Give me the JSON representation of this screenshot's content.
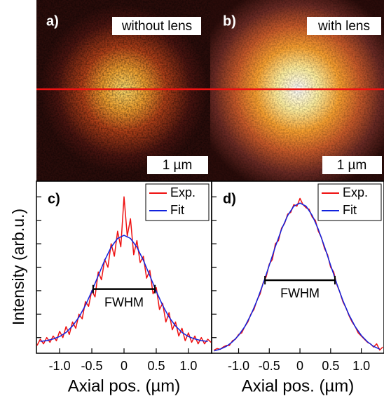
{
  "panels": [
    {
      "letter": "a)",
      "caption": "without lens",
      "scale": "1 µm"
    },
    {
      "letter": "b)",
      "caption": "with lens",
      "scale": "1 µm"
    }
  ],
  "ylabel": "Intensity (arb.u.)",
  "chart_data": [
    {
      "type": "line",
      "letter": "c)",
      "xlabel": "Axial pos. (µm)",
      "xlim": [
        -1.36,
        1.36
      ],
      "ylim": [
        0,
        1.1
      ],
      "xticks": [
        {
          "value": -1,
          "label": "-1.0"
        },
        -0.5,
        0,
        0.5,
        {
          "value": 1,
          "label": "1.0"
        }
      ],
      "yticks": [
        0.1,
        0.25,
        0.4,
        0.55,
        0.7,
        0.85,
        1.0
      ],
      "fwhm": {
        "label": "FWHM",
        "x": [
          -0.48,
          0.48
        ],
        "y": 0.41
      },
      "series": [
        {
          "name": "Exp.",
          "color": "#ee1111",
          "x": [
            -1.35,
            -1.3,
            -1.25,
            -1.2,
            -1.15,
            -1.1,
            -1.05,
            -1.0,
            -0.95,
            -0.9,
            -0.85,
            -0.8,
            -0.75,
            -0.7,
            -0.65,
            -0.6,
            -0.55,
            -0.5,
            -0.45,
            -0.4,
            -0.35,
            -0.3,
            -0.25,
            -0.2,
            -0.15,
            -0.1,
            -0.05,
            0,
            0.05,
            0.1,
            0.15,
            0.2,
            0.25,
            0.3,
            0.35,
            0.4,
            0.45,
            0.5,
            0.55,
            0.6,
            0.65,
            0.7,
            0.75,
            0.8,
            0.85,
            0.9,
            0.95,
            1.0,
            1.05,
            1.1,
            1.15,
            1.2,
            1.25,
            1.3,
            1.35
          ],
          "values": [
            0.05,
            0.09,
            0.06,
            0.1,
            0.07,
            0.11,
            0.08,
            0.14,
            0.1,
            0.17,
            0.12,
            0.2,
            0.16,
            0.25,
            0.22,
            0.33,
            0.3,
            0.4,
            0.36,
            0.52,
            0.47,
            0.6,
            0.55,
            0.7,
            0.62,
            0.78,
            0.68,
            1.0,
            0.75,
            0.86,
            0.63,
            0.72,
            0.58,
            0.62,
            0.48,
            0.53,
            0.38,
            0.42,
            0.28,
            0.32,
            0.2,
            0.26,
            0.15,
            0.2,
            0.11,
            0.16,
            0.08,
            0.13,
            0.07,
            0.11,
            0.06,
            0.1,
            0.06,
            0.09,
            0.07
          ]
        },
        {
          "name": "Fit",
          "color": "#1122dd",
          "x": [
            -1.3,
            -1.2,
            -1.1,
            -1.0,
            -0.9,
            -0.8,
            -0.7,
            -0.6,
            -0.5,
            -0.4,
            -0.3,
            -0.2,
            -0.1,
            0,
            0.1,
            0.2,
            0.3,
            0.4,
            0.5,
            0.6,
            0.7,
            0.8,
            0.9,
            1.0,
            1.1,
            1.2,
            1.3
          ],
          "values": [
            0.076,
            0.081,
            0.091,
            0.107,
            0.133,
            0.174,
            0.231,
            0.306,
            0.396,
            0.496,
            0.594,
            0.678,
            0.734,
            0.754,
            0.734,
            0.678,
            0.594,
            0.496,
            0.396,
            0.306,
            0.231,
            0.174,
            0.133,
            0.107,
            0.091,
            0.081,
            0.076
          ]
        }
      ]
    },
    {
      "type": "line",
      "letter": "d)",
      "xlabel": "Axial pos. (µm)",
      "xlim": [
        -1.44,
        1.37
      ],
      "ylim": [
        0,
        1.1
      ],
      "xticks": [
        {
          "value": -1,
          "label": "-1.0"
        },
        -0.5,
        0,
        0.5,
        {
          "value": 1,
          "label": "1.0"
        }
      ],
      "yticks": [
        0.1,
        0.25,
        0.4,
        0.55,
        0.7,
        0.85,
        1.0
      ],
      "fwhm": {
        "label": "FWHM",
        "x": [
          -0.57,
          0.57
        ],
        "y": 0.467
      },
      "series": [
        {
          "name": "Exp.",
          "color": "#ee1111",
          "x": [
            -1.4,
            -1.35,
            -1.3,
            -1.25,
            -1.2,
            -1.15,
            -1.1,
            -1.05,
            -1.0,
            -0.95,
            -0.9,
            -0.85,
            -0.8,
            -0.75,
            -0.7,
            -0.65,
            -0.6,
            -0.55,
            -0.5,
            -0.45,
            -0.4,
            -0.35,
            -0.3,
            -0.25,
            -0.2,
            -0.15,
            -0.1,
            -0.05,
            0,
            0.05,
            0.1,
            0.15,
            0.2,
            0.25,
            0.3,
            0.35,
            0.4,
            0.45,
            0.5,
            0.55,
            0.6,
            0.65,
            0.7,
            0.75,
            0.8,
            0.85,
            0.9,
            0.95,
            1.0,
            1.05,
            1.1,
            1.15,
            1.2,
            1.25,
            1.3,
            1.35
          ],
          "values": [
            0.02,
            0.03,
            0.025,
            0.04,
            0.05,
            0.05,
            0.08,
            0.09,
            0.12,
            0.13,
            0.17,
            0.2,
            0.25,
            0.28,
            0.34,
            0.38,
            0.45,
            0.49,
            0.57,
            0.6,
            0.7,
            0.72,
            0.8,
            0.83,
            0.89,
            0.9,
            0.95,
            0.94,
            0.99,
            0.95,
            0.93,
            0.92,
            0.87,
            0.85,
            0.78,
            0.74,
            0.67,
            0.63,
            0.55,
            0.52,
            0.44,
            0.39,
            0.33,
            0.29,
            0.24,
            0.2,
            0.17,
            0.13,
            0.11,
            0.09,
            0.07,
            0.06,
            0.04,
            0.06,
            0.02,
            0.04
          ]
        },
        {
          "name": "Fit",
          "color": "#1122dd",
          "x": [
            -1.4,
            -1.3,
            -1.2,
            -1.1,
            -1.0,
            -0.9,
            -0.8,
            -0.7,
            -0.6,
            -0.5,
            -0.4,
            -0.3,
            -0.2,
            -0.1,
            0,
            0.1,
            0.2,
            0.3,
            0.4,
            0.5,
            0.6,
            0.7,
            0.8,
            0.9,
            1.0,
            1.1,
            1.2,
            1.3
          ],
          "values": [
            0.015,
            0.026,
            0.044,
            0.073,
            0.114,
            0.17,
            0.245,
            0.337,
            0.445,
            0.563,
            0.682,
            0.792,
            0.881,
            0.94,
            0.96,
            0.94,
            0.881,
            0.792,
            0.682,
            0.563,
            0.445,
            0.337,
            0.245,
            0.17,
            0.114,
            0.073,
            0.044,
            0.026
          ]
        }
      ]
    }
  ]
}
